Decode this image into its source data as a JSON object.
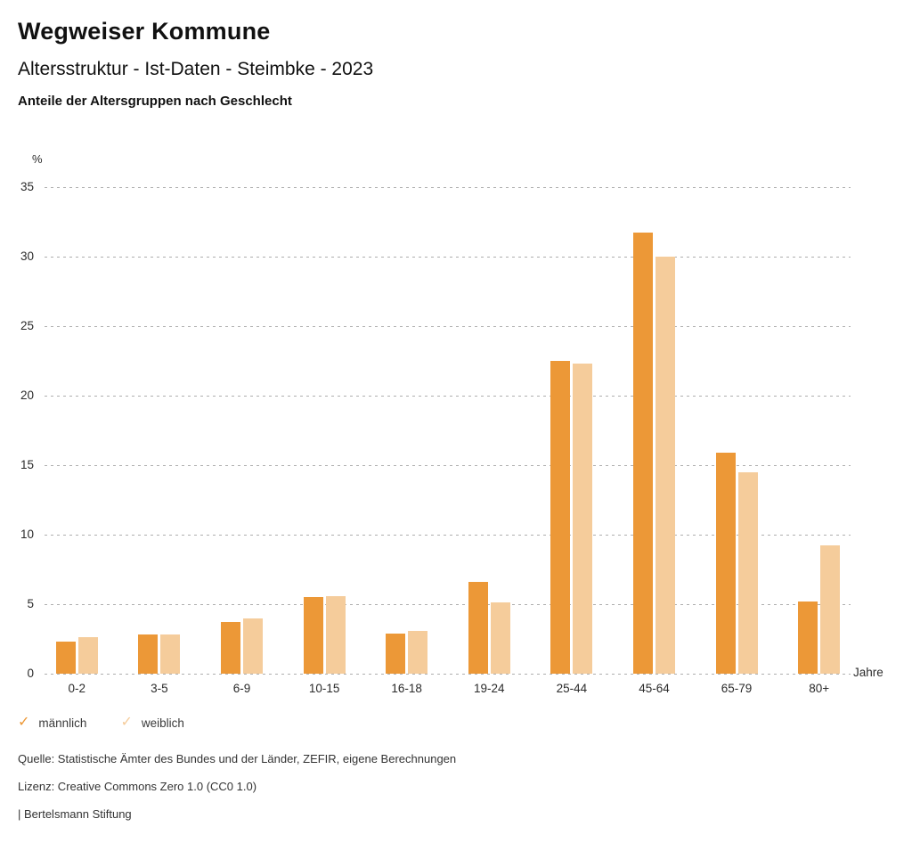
{
  "header": {
    "title": "Wegweiser Kommune",
    "subtitle": "Altersstruktur - Ist-Daten - Steimbke - 2023",
    "caption": "Anteile der Altersgruppen nach Geschlecht"
  },
  "chart_data": {
    "type": "bar",
    "title": "Anteile der Altersgruppen nach Geschlecht",
    "unit_label": "%",
    "xlabel": "Jahre",
    "ylabel": "%",
    "ylim": [
      0,
      35
    ],
    "ytick_step": 5,
    "yticks": [
      0,
      5,
      10,
      15,
      20,
      25,
      30,
      35
    ],
    "grid": "horizontal-dotted",
    "legend_position": "bottom-left",
    "categories": [
      "0-2",
      "3-5",
      "6-9",
      "10-15",
      "16-18",
      "19-24",
      "25-44",
      "45-64",
      "65-79",
      "80+"
    ],
    "series": [
      {
        "name": "männlich",
        "color": "#ec9837",
        "values": [
          2.3,
          2.8,
          3.7,
          5.5,
          2.9,
          6.6,
          22.5,
          31.7,
          15.9,
          5.2
        ]
      },
      {
        "name": "weiblich",
        "color": "#f5cc9b",
        "values": [
          2.6,
          2.8,
          4.0,
          5.6,
          3.1,
          5.1,
          22.3,
          30.0,
          14.5,
          9.2
        ]
      }
    ]
  },
  "legend": {
    "check_icon": "✓",
    "items": [
      {
        "label": "männlich",
        "color": "#ec9837"
      },
      {
        "label": "weiblich",
        "color": "#f5cc9b"
      }
    ]
  },
  "footer": {
    "source": "Quelle: Statistische Ämter des Bundes und der Länder, ZEFIR, eigene Berechnungen",
    "license": "Lizenz: Creative Commons Zero 1.0 (CC0 1.0)",
    "attribution": "| Bertelsmann Stiftung"
  }
}
